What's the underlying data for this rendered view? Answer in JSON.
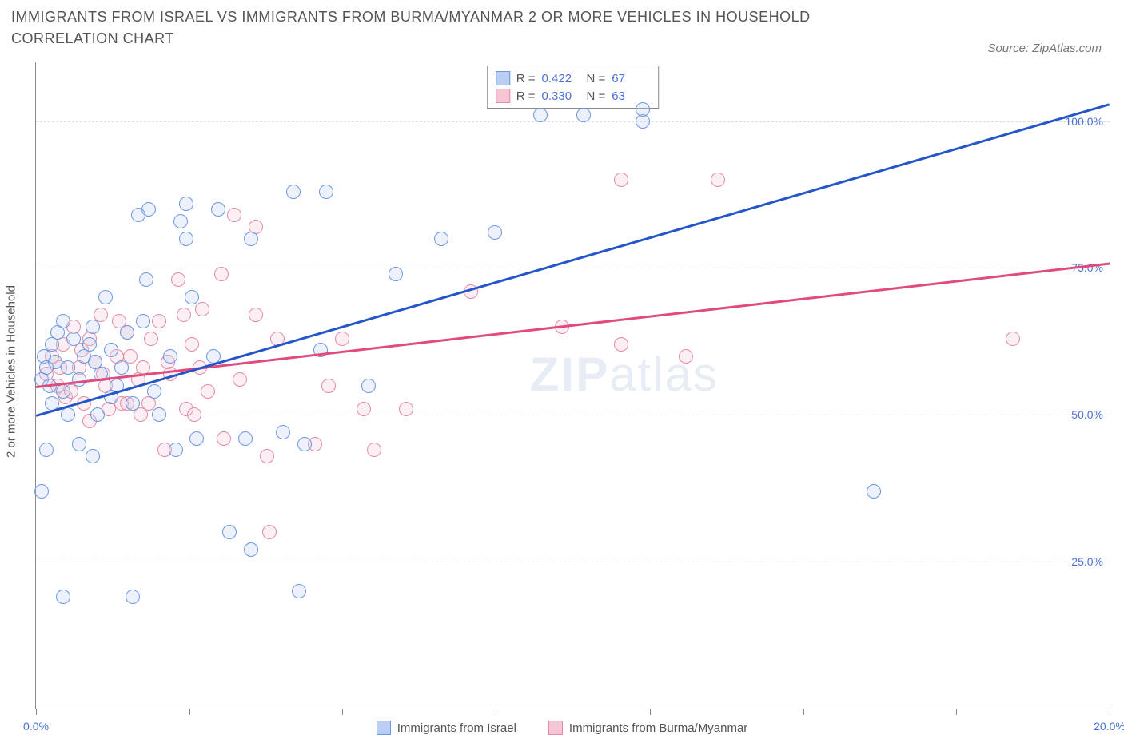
{
  "title": "IMMIGRANTS FROM ISRAEL VS IMMIGRANTS FROM BURMA/MYANMAR 2 OR MORE VEHICLES IN HOUSEHOLD CORRELATION CHART",
  "source": "Source: ZipAtlas.com",
  "y_axis_label": "2 or more Vehicles in Household",
  "watermark_a": "ZIP",
  "watermark_b": "atlas",
  "chart": {
    "type": "scatter",
    "xlim": [
      0,
      20
    ],
    "ylim": [
      0,
      110
    ],
    "x_ticks": [
      0,
      2.86,
      5.71,
      8.57,
      11.43,
      14.29,
      17.14,
      20
    ],
    "x_tick_labels": {
      "0": "0.0%",
      "20": "20.0%"
    },
    "y_gridlines": [
      25,
      50,
      75,
      100
    ],
    "y_tick_labels": {
      "25": "25.0%",
      "50": "50.0%",
      "75": "75.0%",
      "100": "100.0%"
    },
    "background_color": "#ffffff",
    "grid_color": "#dddddd",
    "axis_color": "#888888",
    "tick_label_color": "#4a72d4",
    "marker_radius": 9,
    "marker_border_width": 1.5,
    "marker_fill_opacity": 0.28
  },
  "series": {
    "israel": {
      "label": "Immigrants from Israel",
      "color_border": "#6d98e3",
      "color_fill": "#b9cef2",
      "trend_color": "#2556c9",
      "trend": {
        "x1": 0,
        "y1": 50,
        "x2": 20,
        "y2": 103
      },
      "R": "0.422",
      "N": "67",
      "points": [
        [
          0.1,
          56
        ],
        [
          0.15,
          60
        ],
        [
          0.2,
          58
        ],
        [
          0.25,
          55
        ],
        [
          0.3,
          62
        ],
        [
          0.35,
          59
        ],
        [
          0.4,
          64
        ],
        [
          0.1,
          37
        ],
        [
          0.5,
          54
        ],
        [
          0.5,
          66
        ],
        [
          0.6,
          58
        ],
        [
          0.7,
          63
        ],
        [
          0.8,
          56
        ],
        [
          0.5,
          19
        ],
        [
          0.9,
          60
        ],
        [
          1.0,
          62
        ],
        [
          1.1,
          59
        ],
        [
          1.2,
          57
        ],
        [
          1.3,
          70
        ],
        [
          1.4,
          61
        ],
        [
          1.5,
          55
        ],
        [
          1.05,
          43
        ],
        [
          1.6,
          58
        ],
        [
          1.7,
          64
        ],
        [
          1.8,
          52
        ],
        [
          1.9,
          84
        ],
        [
          2.05,
          73
        ],
        [
          2.1,
          85
        ],
        [
          2.2,
          54
        ],
        [
          2.3,
          50
        ],
        [
          2.5,
          60
        ],
        [
          2.6,
          44
        ],
        [
          1.8,
          19
        ],
        [
          2.7,
          83
        ],
        [
          2.8,
          80
        ],
        [
          2.9,
          70
        ],
        [
          2.8,
          86
        ],
        [
          3.0,
          46
        ],
        [
          3.4,
          85
        ],
        [
          3.6,
          30
        ],
        [
          3.9,
          46
        ],
        [
          3.3,
          60
        ],
        [
          4.0,
          80
        ],
        [
          4.6,
          47
        ],
        [
          4.0,
          27
        ],
        [
          4.8,
          88
        ],
        [
          5.0,
          45
        ],
        [
          5.3,
          61
        ],
        [
          4.9,
          20
        ],
        [
          5.4,
          88
        ],
        [
          6.2,
          55
        ],
        [
          6.7,
          74
        ],
        [
          7.55,
          80
        ],
        [
          8.55,
          81
        ],
        [
          9.4,
          101
        ],
        [
          10.2,
          101
        ],
        [
          11.3,
          100
        ],
        [
          11.3,
          102
        ],
        [
          15.6,
          37
        ],
        [
          0.3,
          52
        ],
        [
          0.6,
          50
        ],
        [
          1.05,
          65
        ],
        [
          1.4,
          53
        ],
        [
          0.8,
          45
        ],
        [
          2.0,
          66
        ],
        [
          1.15,
          50
        ],
        [
          0.2,
          44
        ]
      ]
    },
    "burma": {
      "label": "Immigrants from Burma/Myanmar",
      "color_border": "#e68aa6",
      "color_fill": "#f4c6d4",
      "trend_color": "#e14b7b",
      "trend": {
        "x1": 0,
        "y1": 55,
        "x2": 20,
        "y2": 76
      },
      "R": "0.330",
      "N": "63",
      "points": [
        [
          0.2,
          57
        ],
        [
          0.3,
          60
        ],
        [
          0.4,
          55
        ],
        [
          0.5,
          62
        ],
        [
          0.55,
          53
        ],
        [
          0.7,
          65
        ],
        [
          0.8,
          58
        ],
        [
          0.9,
          52
        ],
        [
          1.0,
          63
        ],
        [
          1.1,
          59
        ],
        [
          1.2,
          67
        ],
        [
          1.25,
          57
        ],
        [
          1.3,
          55
        ],
        [
          1.5,
          60
        ],
        [
          1.6,
          52
        ],
        [
          1.7,
          64
        ],
        [
          1.9,
          56
        ],
        [
          2.0,
          58
        ],
        [
          2.1,
          52
        ],
        [
          2.3,
          66
        ],
        [
          2.4,
          44
        ],
        [
          2.5,
          57
        ],
        [
          2.65,
          73
        ],
        [
          2.8,
          51
        ],
        [
          2.9,
          62
        ],
        [
          3.1,
          68
        ],
        [
          3.2,
          54
        ],
        [
          3.45,
          74
        ],
        [
          3.5,
          46
        ],
        [
          3.7,
          84
        ],
        [
          3.8,
          56
        ],
        [
          4.1,
          82
        ],
        [
          4.1,
          67
        ],
        [
          4.3,
          43
        ],
        [
          4.35,
          30
        ],
        [
          4.5,
          63
        ],
        [
          5.2,
          45
        ],
        [
          5.45,
          55
        ],
        [
          5.7,
          63
        ],
        [
          6.1,
          51
        ],
        [
          6.3,
          44
        ],
        [
          6.9,
          51
        ],
        [
          8.1,
          71
        ],
        [
          9.8,
          65
        ],
        [
          10.9,
          90
        ],
        [
          10.9,
          62
        ],
        [
          12.1,
          60
        ],
        [
          12.7,
          90
        ],
        [
          18.2,
          63
        ],
        [
          0.45,
          58
        ],
        [
          0.65,
          54
        ],
        [
          0.85,
          61
        ],
        [
          1.35,
          51
        ],
        [
          1.55,
          66
        ],
        [
          1.75,
          60
        ],
        [
          1.95,
          50
        ],
        [
          2.15,
          63
        ],
        [
          2.45,
          59
        ],
        [
          2.75,
          67
        ],
        [
          3.05,
          58
        ],
        [
          1.0,
          49
        ],
        [
          1.7,
          52
        ],
        [
          2.95,
          50
        ]
      ]
    }
  },
  "stats_box": {
    "R_label": "R =",
    "N_label": "N ="
  }
}
